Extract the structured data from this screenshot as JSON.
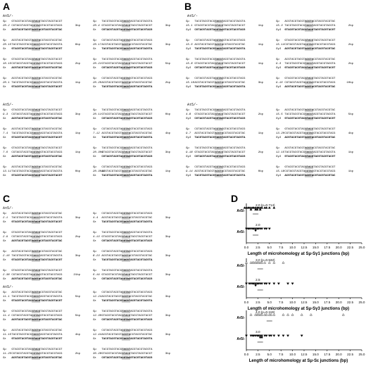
{
  "panels": {
    "A": {
      "label": "A",
      "group1": "Aτ5/-",
      "group2": "Aτ5/-",
      "blocks": [
        {
          "ids": [
            "Sμ",
            "20.2",
            "Sε"
          ],
          "mh": "3bp"
        },
        {
          "ids": [
            "Sμ",
            "20.4",
            "Sε"
          ],
          "mh": "3bp"
        },
        {
          "ids": [
            "Sμ",
            "20.15",
            "Sε"
          ],
          "mh": "6bp"
        },
        {
          "ids": [
            "Sμ",
            "20.17",
            "Sε"
          ],
          "mh": "3bp"
        },
        {
          "ids": [
            "Sμ",
            "10.15",
            "Sε"
          ],
          "mh": "2bp"
        },
        {
          "ids": [
            "Sμ",
            "20.21",
            "Sε"
          ],
          "mh": "5bp"
        },
        {
          "ids": [
            "Sμ",
            "20.1",
            "Sε"
          ],
          "mh": "1bp"
        },
        {
          "ids": [
            "Sμ",
            "20.20",
            "Sε"
          ],
          "mh": "2bp"
        },
        {
          "ids": [
            "Sμ",
            "9.3",
            "Sε"
          ],
          "mh": "3bp"
        },
        {
          "ids": [
            "Sμ",
            "20.11",
            "Sε"
          ],
          "mh": "0bp"
        },
        {
          "ids": [
            "Sμ",
            "7.4",
            "Sε"
          ],
          "mh": "1bp"
        },
        {
          "ids": [
            "Sμ",
            "7.12",
            "Sε"
          ],
          "mh": "4bp"
        },
        {
          "ids": [
            "Sμ",
            "7.6",
            "Sε"
          ],
          "mh": "1bp"
        },
        {
          "ids": [
            "Sμ",
            "20.304",
            "Sε"
          ],
          "mh": "3bp"
        },
        {
          "ids": [
            "Sμ",
            "13.11",
            "Sε"
          ],
          "mh": "0bp"
        },
        {
          "ids": [
            "Sμ",
            "20.3016",
            "Sε"
          ],
          "mh": "1bp"
        }
      ]
    },
    "B": {
      "label": "B",
      "group1": "Aτ5/-",
      "group2": "Aτ5/-",
      "blocks": [
        {
          "ids": [
            "Sμ",
            "15.1",
            "Sγ3"
          ],
          "mh": "1bp"
        },
        {
          "ids": [
            "Sμ",
            "15.3",
            "Sγ3"
          ],
          "mh": "2bp"
        },
        {
          "ids": [
            "Sμ",
            "15.6",
            "Sγ3"
          ],
          "mh": "1bp"
        },
        {
          "ids": [
            "Sμ",
            "15.14",
            "Sγ3"
          ],
          "mh": "2bp"
        },
        {
          "ids": [
            "Sμ",
            "15.8",
            "Sγ3"
          ],
          "mh": "1bp"
        },
        {
          "ids": [
            "Sμ",
            "9.3",
            "Sγ3"
          ],
          "mh": "2bp"
        },
        {
          "ids": [
            "Sμ",
            "15.10",
            "Sγ3"
          ],
          "mh": "3bp"
        },
        {
          "ids": [
            "Sμ",
            "9.16",
            "Sγ3"
          ],
          "mh": "10bp"
        },
        {
          "ids": [
            "Sμ",
            "4.8",
            "Sγ3"
          ],
          "mh": "2bp"
        },
        {
          "ids": [
            "Sμ",
            "15.5",
            "Sγ3"
          ],
          "mh": "5bp"
        },
        {
          "ids": [
            "Sμ",
            "9.7",
            "Sγ3"
          ],
          "mh": "1bp"
        },
        {
          "ids": [
            "Sμ",
            "13.20",
            "Sγ3"
          ],
          "mh": "4bp"
        },
        {
          "ids": [
            "Sμ",
            "9.18",
            "Sγ3"
          ],
          "mh": "2bp"
        },
        {
          "ids": [
            "Sμ",
            "12.15",
            "Sγ3"
          ],
          "mh": "1bp"
        },
        {
          "ids": [
            "Sμ",
            "9.14",
            "Sγ3"
          ],
          "mh": "0bp"
        },
        {
          "ids": [
            "Sμ",
            "15.18",
            "Sγ3"
          ],
          "mh": "1bp"
        }
      ]
    },
    "C": {
      "label": "C",
      "group1": "Aτ5/-",
      "group2": "Aτ5/-",
      "blocks": [
        {
          "ids": [
            "Sμ",
            "2.1",
            "Sε"
          ],
          "mh": "3bp"
        },
        {
          "ids": [
            "Sμ",
            "4.4",
            "Sε"
          ],
          "mh": "3bp"
        },
        {
          "ids": [
            "Sμ",
            "2.9",
            "Sε"
          ],
          "mh": "2bp"
        },
        {
          "ids": [
            "Sμ",
            "4.13",
            "Sε"
          ],
          "mh": "3bp"
        },
        {
          "ids": [
            "Sμ",
            "2.16",
            "Sε"
          ],
          "mh": "3bp"
        },
        {
          "ids": [
            "Sμ",
            "8.23",
            "Sε"
          ],
          "mh": "3bp"
        },
        {
          "ids": [
            "Sμ",
            "2.38",
            "Sε"
          ],
          "mh": "21bp"
        },
        {
          "ids": [
            "Sμ",
            "6.19",
            "Sε"
          ],
          "mh": "3bp"
        },
        {
          "ids": [
            "Sμ",
            "11.1",
            "Sε"
          ],
          "mh": "5bp"
        },
        {
          "ids": [
            "Sμ",
            "12.24",
            "Sε"
          ],
          "mh": "3bp"
        },
        {
          "ids": [
            "Sμ",
            "11.4",
            "Sε"
          ],
          "mh": "5bp"
        },
        {
          "ids": [
            "Sμ",
            "12.30",
            "Sε"
          ],
          "mh": "3bp"
        },
        {
          "ids": [
            "Sμ",
            "11.15",
            "Sε"
          ],
          "mh": "4bp"
        },
        {
          "ids": [
            "Sμ",
            "12.44",
            "Sε"
          ],
          "mh": "3bp"
        },
        {
          "ids": [
            "Sμ",
            "11.25",
            "Sε"
          ],
          "mh": "2bp"
        },
        {
          "ids": [
            "Sμ",
            "36.28",
            "Sε"
          ],
          "mh": "3bp"
        }
      ]
    },
    "D": {
      "label": "D"
    }
  },
  "chart_data": [
    {
      "type": "scatter",
      "xlabel": "Length of microhomology at Sμ-Sγ1 junctions (bp)",
      "xticks": [
        "0.0",
        "2.5",
        "5.0",
        "7.5",
        "10.0",
        "12.5",
        "15.0",
        "17.5",
        "20.0",
        "22.5",
        "25.0"
      ],
      "groups": [
        "Aτ5/-",
        "Aτ5/-"
      ],
      "annotation": "2.0 (p=0.714)",
      "annotation2": "2.0",
      "series": [
        {
          "name": "Aτ5/-",
          "marker": "triangle-filled",
          "x": [
            0,
            0,
            0,
            1,
            1,
            1,
            1,
            2,
            2,
            2,
            2,
            2,
            3,
            3,
            3,
            3,
            4,
            4,
            5,
            6
          ]
        },
        {
          "name": "Aτ5/-",
          "marker": "triangle-down",
          "x": [
            0,
            0,
            1,
            1,
            1,
            2,
            2,
            2,
            2,
            3,
            3,
            3,
            4,
            4,
            5
          ]
        }
      ],
      "xlim": [
        0,
        25
      ]
    },
    {
      "type": "scatter",
      "xlabel": "Length of microhomology at Sμ-Sγ3 junctions (bp)",
      "xticks": [
        "0.0",
        "2.5",
        "5.0",
        "7.5",
        "10.0",
        "12.5",
        "15.0",
        "17.5",
        "20.0",
        "22.5",
        "25.0"
      ],
      "groups": [
        "Aτ5/-",
        "Aτ5/-"
      ],
      "annotation": "3.0 (p=0.532)",
      "annotation2": "2.5",
      "series": [
        {
          "name": "Aτ5/-",
          "marker": "triangle-open",
          "x": [
            0,
            1,
            1,
            2,
            2,
            2,
            3,
            3,
            3,
            4,
            5,
            6,
            8
          ]
        },
        {
          "name": "Aτ5/-",
          "marker": "triangle-down",
          "x": [
            0,
            1,
            1,
            1,
            2,
            2,
            2,
            2,
            3,
            3,
            3,
            4,
            4,
            5,
            6,
            7,
            9,
            10
          ]
        }
      ],
      "xlim": [
        0,
        25
      ]
    },
    {
      "type": "scatter",
      "xlabel": "Length of microhomology at Sμ-Sε junctions (bp)",
      "xticks": [
        "0.0",
        "2.5",
        "5.0",
        "7.5",
        "10.0",
        "12.5",
        "15.0",
        "17.5",
        "20.0",
        "22.5",
        "25.0"
      ],
      "groups": [
        "Aτ5/-",
        "Aτ5/-"
      ],
      "annotation": "4.0 (p=0.119)",
      "annotation2": "3.0",
      "series": [
        {
          "name": "Aτ5/-",
          "marker": "triangle-open",
          "x": [
            1,
            2,
            2,
            3,
            3,
            3,
            4,
            4,
            5,
            5,
            6,
            8,
            9,
            10,
            12,
            14,
            21
          ]
        },
        {
          "name": "Aτ5/-",
          "marker": "triangle-down",
          "x": [
            0,
            1,
            1,
            2,
            2,
            2,
            3,
            3,
            3,
            3,
            3,
            4,
            4,
            5,
            5,
            6,
            7,
            8,
            9,
            12
          ]
        }
      ],
      "xlim": [
        0,
        25
      ]
    }
  ]
}
